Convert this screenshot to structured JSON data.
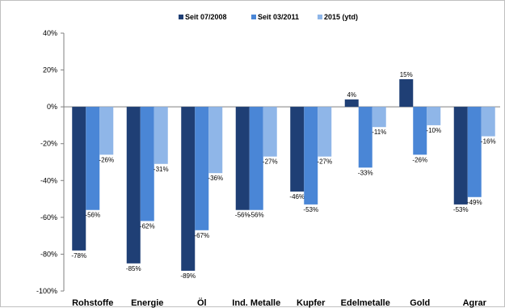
{
  "chart_data": {
    "type": "bar",
    "title": "",
    "xlabel": "",
    "ylabel": "",
    "ylim": [
      -100,
      40
    ],
    "yticks": [
      -100,
      -80,
      -60,
      -40,
      -20,
      0,
      20,
      40
    ],
    "ytick_format": "percent",
    "grid": false,
    "legend_position": "top-center",
    "categories": [
      "Rohstoffe",
      "Energie",
      "Öl",
      "Ind. Metalle",
      "Kupfer",
      "Edelmetalle",
      "Gold",
      "Agrar"
    ],
    "series": [
      {
        "name": "Seit 07/2008",
        "color": "#1f3f75",
        "values": [
          -78,
          -85,
          -89,
          -56,
          -46,
          4,
          15,
          -53
        ],
        "labels": [
          "-78%",
          "-85%",
          "-89%",
          "-56%",
          "-46%",
          "4%",
          "15%",
          "-53%"
        ]
      },
      {
        "name": "Seit 03/2011",
        "color": "#4a86d6",
        "values": [
          -56,
          -62,
          -67,
          -56,
          -53,
          -33,
          -26,
          -49
        ],
        "labels": [
          "-56%",
          "-62%",
          "-67%",
          "-56%",
          "-53%",
          "-33%",
          "-26%",
          "-49%"
        ]
      },
      {
        "name": "2015 (ytd)",
        "color": "#8fb6e8",
        "values": [
          -26,
          -31,
          -36,
          -27,
          -27,
          -11,
          -10,
          -16
        ],
        "labels": [
          "-26%",
          "-31%",
          "-36%",
          "-27%",
          "-27%",
          "-11%",
          "-10%",
          "-16%"
        ]
      }
    ]
  }
}
